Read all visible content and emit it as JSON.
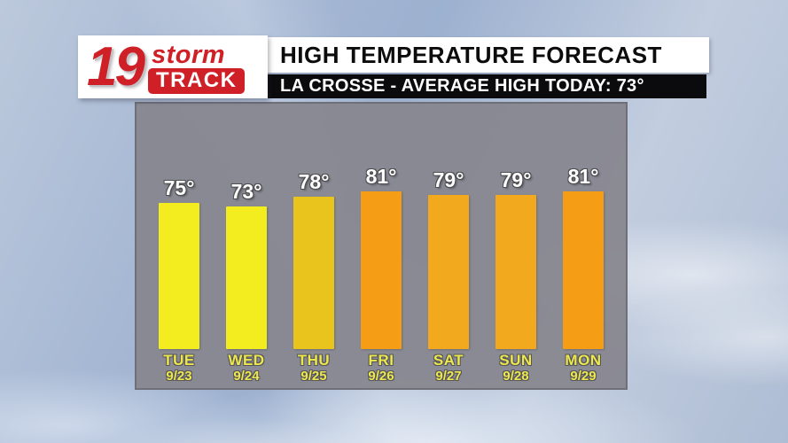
{
  "branding": {
    "station_number": "19",
    "storm": "storm",
    "track": "TRACK"
  },
  "header": {
    "title": "HIGH TEMPERATURE FORECAST",
    "subtitle": "LA CROSSE - AVERAGE HIGH TODAY: 73°"
  },
  "chart_data": {
    "type": "bar",
    "title": "HIGH TEMPERATURE FORECAST",
    "subtitle": "LA CROSSE - AVERAGE HIGH TODAY: 73°",
    "categories": [
      "TUE",
      "WED",
      "THU",
      "FRI",
      "SAT",
      "SUN",
      "MON"
    ],
    "dates": [
      "9/23",
      "9/24",
      "9/25",
      "9/26",
      "9/27",
      "9/28",
      "9/29"
    ],
    "values": [
      75,
      73,
      78,
      81,
      79,
      79,
      81
    ],
    "value_labels": [
      "75°",
      "73°",
      "78°",
      "81°",
      "79°",
      "79°",
      "81°"
    ],
    "bar_colors": [
      "#f3ed1f",
      "#f3ed1f",
      "#e8c41d",
      "#f59d14",
      "#f2a91e",
      "#f2a91e",
      "#f59d14"
    ],
    "xlabel": "",
    "ylabel": "",
    "grid": false,
    "legend": "none",
    "axes_visible": false
  },
  "colors": {
    "accent_red": "#cf2027",
    "panel_gray": "#86858e",
    "panel_border": "#6f6f78",
    "day_label_yellow": "#ece74d",
    "temp_label_white": "#ffffff",
    "title_bar_bg": "#ffffff",
    "subtitle_bar_bg": "#0b0b0d"
  }
}
